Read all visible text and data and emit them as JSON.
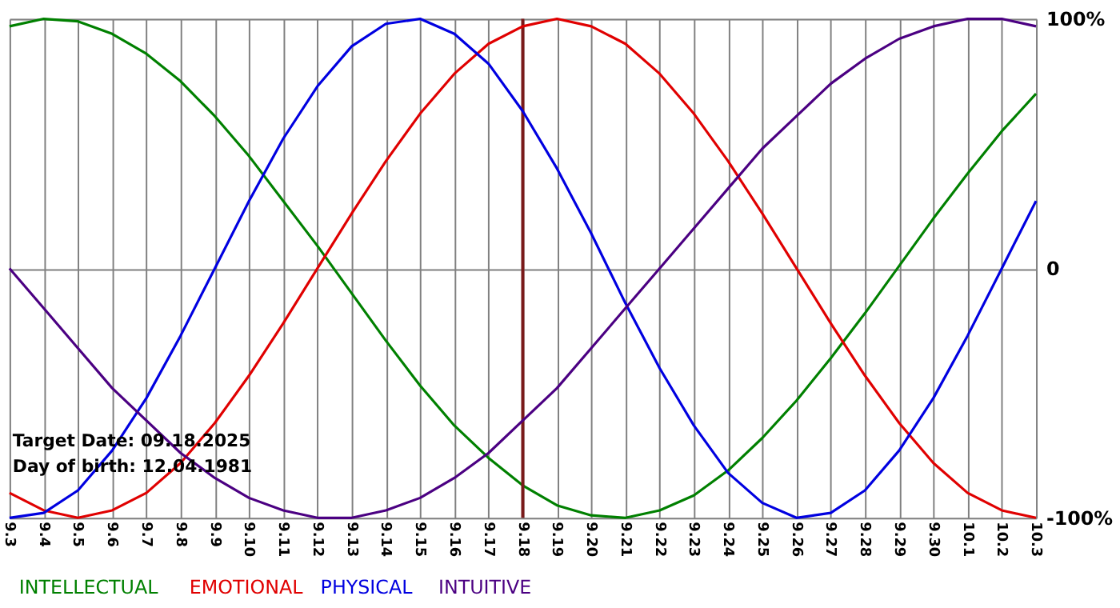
{
  "chart_data": {
    "type": "line",
    "categories": [
      "9.3",
      "9.4",
      "9.5",
      "9.6",
      "9.7",
      "9.8",
      "9.9",
      "9.10",
      "9.11",
      "9.12",
      "9.13",
      "9.14",
      "9.15",
      "9.16",
      "9.17",
      "9.18",
      "9.19",
      "9.20",
      "9.21",
      "9.22",
      "9.23",
      "9.24",
      "9.25",
      "9.26",
      "9.27",
      "9.28",
      "9.29",
      "9.30",
      "10.1",
      "10.2",
      "10.3"
    ],
    "series": [
      {
        "name": "INTELLECTUAL",
        "color": "#008000",
        "values": [
          97,
          100,
          99,
          94,
          86,
          75,
          61,
          45,
          27,
          9,
          -10,
          -29,
          -47,
          -63,
          -76,
          -87,
          -95,
          -99,
          -100,
          -97,
          -91,
          -81,
          -68,
          -53,
          -36,
          -18,
          1,
          20,
          38,
          55,
          70
        ]
      },
      {
        "name": "EMOTIONAL",
        "color": "#e00000",
        "values": [
          -90,
          -97,
          -100,
          -97,
          -90,
          -78,
          -62,
          -43,
          -22,
          0,
          22,
          43,
          62,
          78,
          90,
          97,
          100,
          97,
          90,
          78,
          62,
          43,
          22,
          0,
          -22,
          -43,
          -62,
          -78,
          -90,
          -97,
          -100
        ]
      },
      {
        "name": "PHYSICAL",
        "color": "#0000e0",
        "values": [
          -100,
          -98,
          -89,
          -73,
          -52,
          -27,
          0,
          27,
          52,
          73,
          89,
          98,
          100,
          94,
          82,
          63,
          40,
          14,
          -14,
          -40,
          -63,
          -82,
          -94,
          -100,
          -98,
          -89,
          -73,
          -52,
          -27,
          0,
          27
        ]
      },
      {
        "name": "INTUITIVE",
        "color": "#4b0082",
        "values": [
          0,
          -16,
          -32,
          -48,
          -61,
          -74,
          -84,
          -92,
          -97,
          -100,
          -100,
          -97,
          -92,
          -84,
          -74,
          -61,
          -48,
          -32,
          -16,
          0,
          16,
          32,
          48,
          61,
          74,
          84,
          92,
          97,
          100,
          100,
          97
        ]
      }
    ],
    "ylim": [
      -100,
      100
    ],
    "yticks": [
      {
        "value": -100,
        "label": "-100%"
      },
      0,
      {
        "value": 100,
        "label": "100%"
      }
    ],
    "grid": true,
    "legend": "bottom",
    "ref_lines": [
      {
        "axis": "x",
        "value": "9.18",
        "color": "#7a1a1a"
      }
    ],
    "annotations": [
      "Target Date: 09.18.2025",
      "Day of birth: 12.04.1981"
    ]
  }
}
